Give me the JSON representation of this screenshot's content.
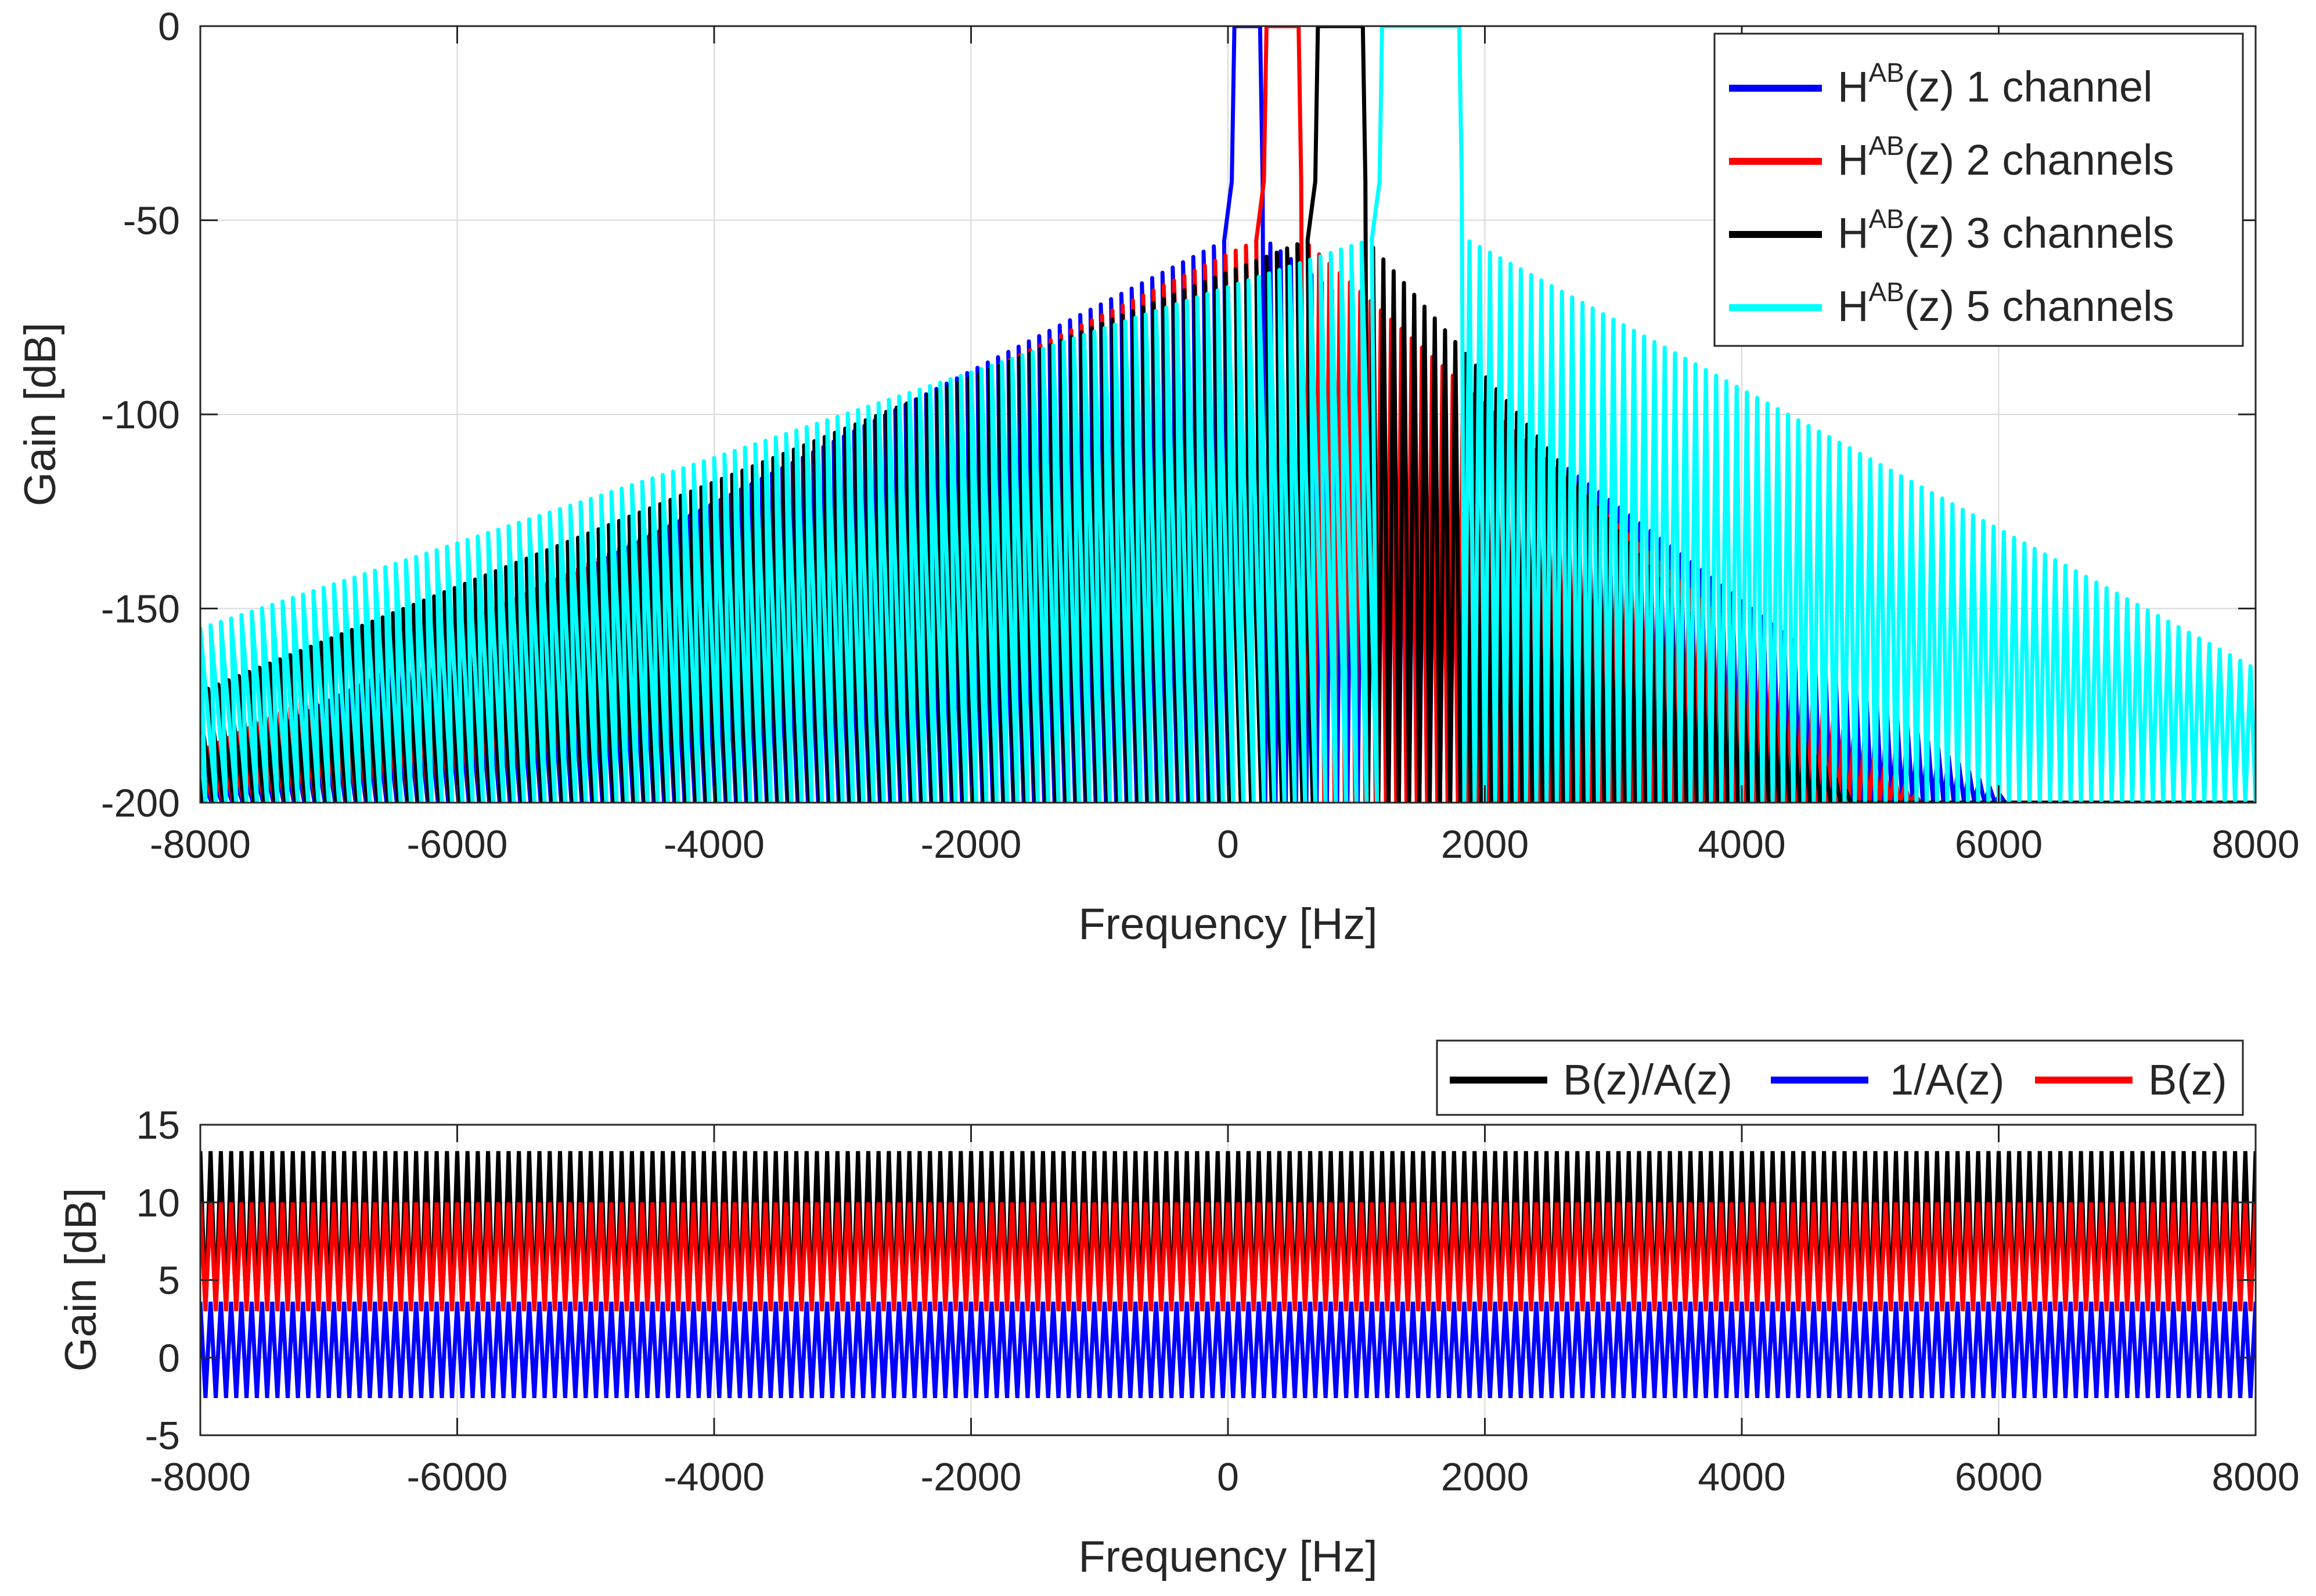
{
  "chart_data": [
    {
      "type": "line",
      "xlabel": "Frequency [Hz]",
      "ylabel": "Gain [dB]",
      "xlim": [
        -8000,
        8000
      ],
      "ylim": [
        -200,
        0
      ],
      "xticks": [
        "-8000",
        "-6000",
        "-4000",
        "-2000",
        "0",
        "2000",
        "4000",
        "6000",
        "8000"
      ],
      "yticks": [
        "0",
        "-50",
        "-100",
        "-150",
        "-200"
      ],
      "grid": true,
      "legend_location": "top-right",
      "series": [
        {
          "name": "H^AB(z) 1 channel",
          "legend_base": "H",
          "legend_sup": "AB",
          "legend_rest": "(z) 1 channel",
          "color": "#0000ff",
          "passband_hz": [
            50,
            250
          ],
          "passband_gain_db": 0,
          "left_decay_db_per_khz": 17,
          "right_decay_db_per_khz": 25,
          "first_sidelobe_db": -54,
          "ripple_period_hz": 80
        },
        {
          "name": "H^AB(z) 2 channels",
          "legend_base": "H",
          "legend_sup": "AB",
          "legend_rest": "(z) 2 channels",
          "color": "#ff0000",
          "passband_hz": [
            300,
            550
          ],
          "passband_gain_db": 0,
          "left_decay_db_per_khz": 16,
          "right_decay_db_per_khz": 30,
          "first_sidelobe_db": -54,
          "ripple_period_hz": 80
        },
        {
          "name": "H^AB(z) 3 channels",
          "legend_base": "H",
          "legend_sup": "AB",
          "legend_rest": "(z) 3 channels",
          "color": "#000000",
          "passband_hz": [
            700,
            1050
          ],
          "passband_gain_db": 0,
          "left_decay_db_per_khz": 13.5,
          "right_decay_db_per_khz": 38,
          "first_sidelobe_db": -54,
          "ripple_period_hz": 80
        },
        {
          "name": "H^AB(z) 5 channels",
          "legend_base": "H",
          "legend_sup": "AB",
          "legend_rest": "(z) 5 channels",
          "color": "#00ffff",
          "passband_hz": [
            1200,
            1800
          ],
          "passband_gain_db": 0,
          "left_decay_db_per_khz": 11,
          "right_decay_db_per_khz": 18,
          "first_sidelobe_db": -54,
          "ripple_period_hz": 80
        }
      ]
    },
    {
      "type": "line",
      "xlabel": "Frequency [Hz]",
      "ylabel": "Gain [dB]",
      "xlim": [
        -8000,
        8000
      ],
      "ylim": [
        -5,
        15
      ],
      "xticks": [
        "-8000",
        "-6000",
        "-4000",
        "-2000",
        "0",
        "2000",
        "4000",
        "6000",
        "8000"
      ],
      "yticks": [
        "15",
        "10",
        "5",
        "0",
        "-5"
      ],
      "grid": true,
      "legend_location": "north-outside",
      "ripple_period_hz": 80,
      "series": [
        {
          "name": "B(z)/A(z)",
          "color": "#000000",
          "min_db": 3.0,
          "max_db": 13.3
        },
        {
          "name": "1/A(z)",
          "color": "#0000ff",
          "min_db": -2.6,
          "max_db": 3.6
        },
        {
          "name": "B(z)",
          "color": "#ff0000",
          "min_db": 3.0,
          "max_db": 10.0
        }
      ]
    }
  ]
}
